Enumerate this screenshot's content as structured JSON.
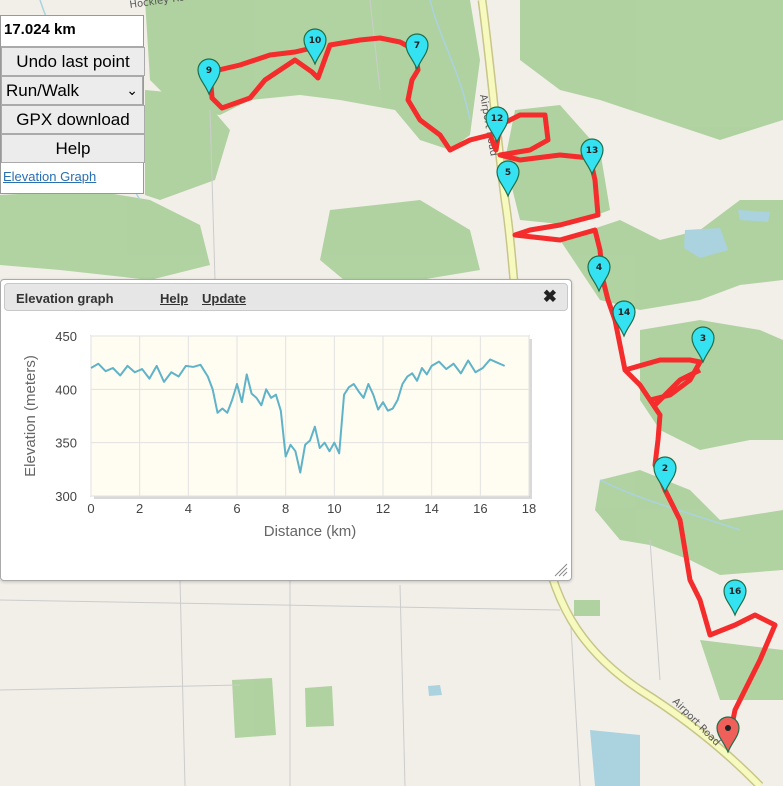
{
  "map": {
    "route_color": "#f42c2c",
    "marker_color": "#35e2f2",
    "end_marker_color": "#f0605a",
    "markers": [
      {
        "label": "10"
      },
      {
        "label": "7"
      },
      {
        "label": "9"
      },
      {
        "label": "12"
      },
      {
        "label": "13"
      },
      {
        "label": "5"
      },
      {
        "label": "4"
      },
      {
        "label": "14"
      },
      {
        "label": "3"
      },
      {
        "label": "2"
      },
      {
        "label": "16"
      },
      {
        "label": ""
      }
    ],
    "road_labels": [
      "Hockley Road",
      "Airport Road",
      "Airport Road"
    ]
  },
  "panel": {
    "distance": "17.024 km",
    "undo_label": "Undo last point",
    "mode_selected": "Run/Walk",
    "gpx_label": "GPX download",
    "help_label": "Help",
    "elevation_link": "Elevation Graph"
  },
  "dialog": {
    "title": "Elevation graph",
    "help": "Help",
    "update": "Update",
    "close": "✖"
  },
  "chart_data": {
    "type": "line",
    "xlabel": "Distance (km)",
    "ylabel": "Elevation (meters)",
    "xlim": [
      0,
      18
    ],
    "ylim": [
      300,
      450
    ],
    "xticks": [
      0,
      2,
      4,
      6,
      8,
      10,
      12,
      14,
      16,
      18
    ],
    "yticks": [
      300,
      350,
      400,
      450
    ],
    "grid": true,
    "line_color": "#5fb3c8",
    "x": [
      0,
      0.3,
      0.6,
      0.9,
      1.2,
      1.5,
      1.8,
      2.1,
      2.4,
      2.7,
      3.0,
      3.3,
      3.6,
      3.9,
      4.2,
      4.5,
      4.8,
      5.0,
      5.2,
      5.4,
      5.6,
      5.8,
      6.0,
      6.2,
      6.4,
      6.6,
      6.8,
      7.0,
      7.2,
      7.4,
      7.6,
      7.8,
      8.0,
      8.2,
      8.4,
      8.6,
      8.8,
      9.0,
      9.2,
      9.4,
      9.6,
      9.8,
      10.0,
      10.2,
      10.4,
      10.6,
      10.8,
      11.0,
      11.2,
      11.4,
      11.6,
      11.8,
      12.0,
      12.2,
      12.4,
      12.6,
      12.8,
      13.0,
      13.2,
      13.4,
      13.6,
      13.8,
      14.0,
      14.3,
      14.6,
      14.9,
      15.2,
      15.5,
      15.8,
      16.1,
      16.4,
      16.7,
      17.0
    ],
    "y": [
      420,
      424,
      417,
      420,
      413,
      422,
      416,
      419,
      410,
      422,
      407,
      416,
      412,
      422,
      421,
      423,
      412,
      400,
      378,
      382,
      378,
      390,
      405,
      388,
      414,
      396,
      392,
      385,
      400,
      392,
      395,
      380,
      337,
      348,
      342,
      322,
      348,
      352,
      365,
      345,
      350,
      342,
      350,
      340,
      395,
      402,
      405,
      398,
      392,
      405,
      395,
      381,
      388,
      380,
      382,
      390,
      405,
      412,
      415,
      408,
      420,
      414,
      422,
      426,
      419,
      424,
      415,
      427,
      416,
      420,
      428,
      425,
      422
    ]
  }
}
